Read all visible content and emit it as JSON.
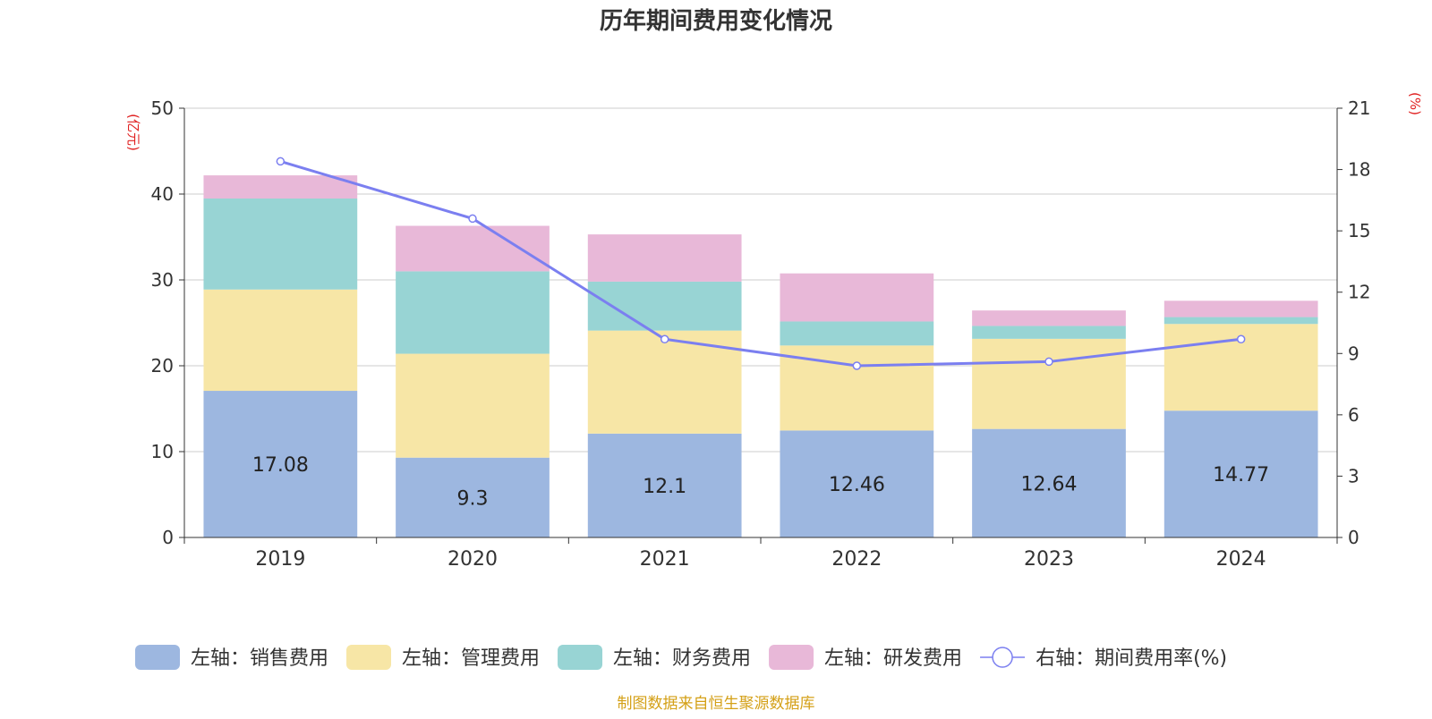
{
  "chart_data": {
    "type": "bar",
    "title": "历年期间费用变化情况",
    "left_axis_unit": "(亿元)",
    "right_axis_unit": "(%)",
    "categories": [
      "2019",
      "2020",
      "2021",
      "2022",
      "2023",
      "2024"
    ],
    "left_ylim": [
      0,
      50
    ],
    "left_ticks": [
      "0",
      "10",
      "20",
      "30",
      "40",
      "50"
    ],
    "right_ylim": [
      0,
      21
    ],
    "right_ticks": [
      "0",
      "3",
      "6",
      "9",
      "12",
      "15",
      "18",
      "21"
    ],
    "grid": true,
    "stacked": true,
    "series": [
      {
        "name": "左轴：销售费用",
        "color": "#9db7e0",
        "axis": "left",
        "type": "bar",
        "values": [
          17.08,
          9.3,
          12.1,
          12.46,
          12.64,
          14.77
        ],
        "show_labels": true
      },
      {
        "name": "左轴：管理费用",
        "color": "#f7e6a6",
        "axis": "left",
        "type": "bar",
        "values": [
          11.8,
          12.1,
          12.0,
          9.9,
          10.5,
          10.1
        ],
        "show_labels": false
      },
      {
        "name": "左轴：财务费用",
        "color": "#98d4d4",
        "axis": "left",
        "type": "bar",
        "values": [
          10.6,
          9.6,
          5.7,
          2.8,
          1.5,
          0.8
        ],
        "show_labels": false
      },
      {
        "name": "左轴：研发费用",
        "color": "#e8b8d8",
        "axis": "left",
        "type": "bar",
        "values": [
          2.7,
          5.3,
          5.5,
          5.6,
          1.8,
          1.9
        ],
        "show_labels": false
      },
      {
        "name": "右轴：期间费用率(%)",
        "color": "#7b7ff0",
        "axis": "right",
        "type": "line",
        "values": [
          18.4,
          15.6,
          9.7,
          8.4,
          8.6,
          9.7
        ],
        "show_labels": false
      }
    ],
    "legend_position": "bottom",
    "source": "制图数据来自恒生聚源数据库",
    "colors": {
      "axis_unit": "#e02020",
      "source": "#d4a017",
      "grid": "#cccccc",
      "axis": "#333333",
      "text": "#333333"
    }
  }
}
